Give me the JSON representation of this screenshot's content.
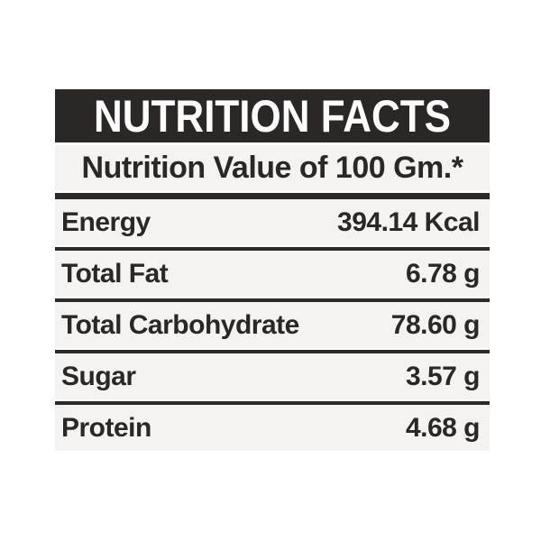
{
  "label": {
    "title": "NUTRITION FACTS",
    "subtitle": "Nutrition Value of 100 Gm.*",
    "colors": {
      "header_bg": "#2b2725",
      "band_bg": "#f4f3f2",
      "text": "#2a2726",
      "header_text": "#fcfcfc",
      "rule": "#2c2927",
      "page_bg": "#ffffff"
    },
    "rows": [
      {
        "name": "Energy",
        "value": "394.14 Kcal"
      },
      {
        "name": "Total Fat",
        "value": "6.78 g"
      },
      {
        "name": "Total Carbohydrate",
        "value": "78.60 g"
      },
      {
        "name": "Sugar",
        "value": "3.57 g"
      },
      {
        "name": "Protein",
        "value": "4.68 g"
      }
    ]
  }
}
